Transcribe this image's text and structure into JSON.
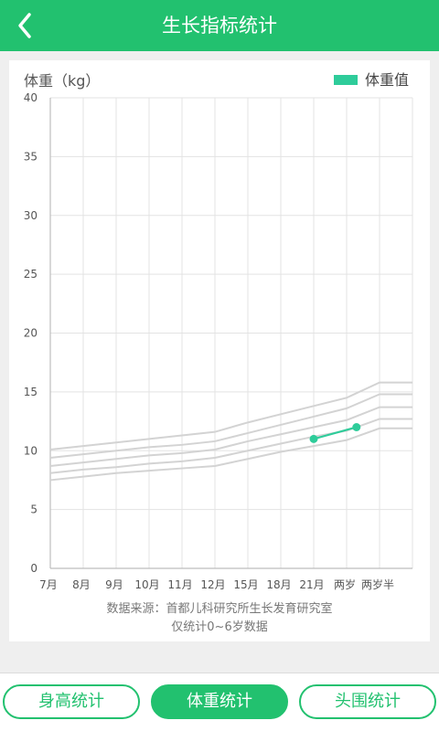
{
  "header": {
    "title": "生长指标统计",
    "back_icon": "chevron-left-icon"
  },
  "chart_data": {
    "type": "line",
    "ylabel": "体重（kg）",
    "legend": {
      "label": "体重值",
      "position": "top-right",
      "color": "#2ecc9a"
    },
    "categories": [
      "7月",
      "8月",
      "9月",
      "10月",
      "11月",
      "12月",
      "15月",
      "18月",
      "21月",
      "两岁",
      "两岁半"
    ],
    "ylim": [
      0,
      40
    ],
    "yticks": [
      0,
      5,
      10,
      15,
      20,
      25,
      30,
      35,
      40
    ],
    "grid": true,
    "reference_color": "#d3d3d3",
    "reference_series": [
      {
        "values": [
          10.1,
          10.4,
          10.7,
          11.0,
          11.3,
          11.6,
          12.4,
          13.1,
          13.8,
          14.5,
          15.8
        ]
      },
      {
        "values": [
          9.4,
          9.7,
          10.0,
          10.3,
          10.5,
          10.8,
          11.5,
          12.2,
          12.9,
          13.6,
          14.8
        ]
      },
      {
        "values": [
          8.7,
          9.0,
          9.3,
          9.6,
          9.8,
          10.1,
          10.8,
          11.4,
          12.0,
          12.6,
          13.7
        ]
      },
      {
        "values": [
          8.1,
          8.4,
          8.6,
          8.9,
          9.1,
          9.4,
          10.0,
          10.6,
          11.2,
          11.7,
          12.7
        ]
      },
      {
        "values": [
          7.5,
          7.8,
          8.1,
          8.3,
          8.5,
          8.7,
          9.3,
          9.9,
          10.4,
          10.9,
          11.9
        ]
      }
    ],
    "measurements": [
      {
        "x_index": 8,
        "value": 11.0
      },
      {
        "x_index": 9.3,
        "value": 12.0
      }
    ]
  },
  "source": {
    "line1": "数据来源：首都儿科研究所生长发育研究室",
    "line2": "仅统计0~6岁数据"
  },
  "tabs": [
    {
      "label": "身高统计",
      "active": false
    },
    {
      "label": "体重统计",
      "active": true
    },
    {
      "label": "头围统计",
      "active": false
    }
  ],
  "colors": {
    "brand": "#22c16f"
  }
}
